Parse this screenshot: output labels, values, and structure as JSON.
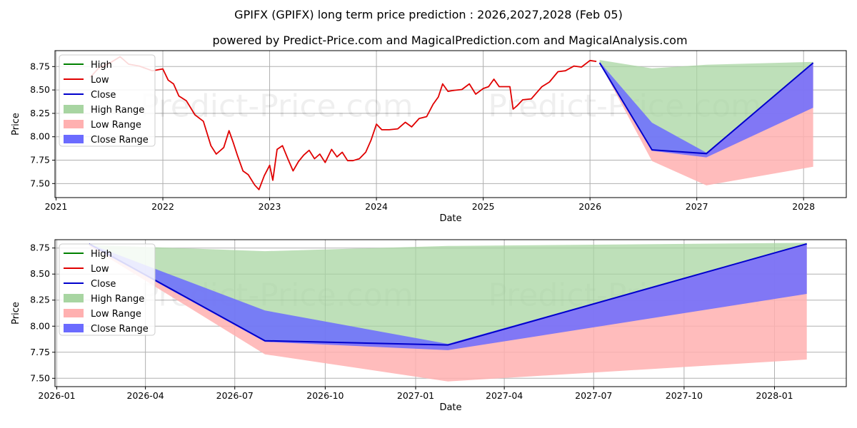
{
  "title_line1": "GPIFX (GPIFX) long term price prediction : 2026,2027,2028 (Feb 05)",
  "title_line2": "powered by Predict-Price.com and MagicalPrediction.com and MagicalAnalysis.com",
  "watermark": "Predict-Price.com",
  "colors": {
    "high": "#008000",
    "low": "#e00000",
    "close": "#0000cc",
    "high_range": "#a8d5a2",
    "low_range": "#ffb0b0",
    "close_range": "#6b6bff",
    "grid": "#b0b0b0"
  },
  "legend": [
    "High",
    "Low",
    "Close",
    "High Range",
    "Low Range",
    "Close Range"
  ],
  "chart_data": [
    {
      "type": "line",
      "panel": "long_term",
      "xlabel": "Date",
      "ylabel": "Price",
      "x_tick_labels": [
        "2021",
        "2022",
        "2023",
        "2024",
        "2025",
        "2026",
        "2027",
        "2028"
      ],
      "x_tick_years": [
        2021,
        2022,
        2023,
        2024,
        2025,
        2026,
        2027,
        2028
      ],
      "xlim": [
        2020.99,
        2028.4
      ],
      "y_tick_labels": [
        "7.50",
        "7.75",
        "8.00",
        "8.25",
        "8.50",
        "8.75"
      ],
      "y_ticks": [
        7.5,
        7.75,
        8.0,
        8.25,
        8.5,
        8.75
      ],
      "ylim": [
        7.35,
        8.92
      ],
      "history": {
        "name": "Low",
        "x": [
          2021.32,
          2021.4,
          2021.5,
          2021.6,
          2021.68,
          2021.78,
          2021.9,
          2022.0,
          2022.05,
          2022.1,
          2022.15,
          2022.22,
          2022.3,
          2022.38,
          2022.45,
          2022.5,
          2022.57,
          2022.62,
          2022.66,
          2022.7,
          2022.75,
          2022.8,
          2022.86,
          2022.9,
          2022.95,
          2023.0,
          2023.03,
          2023.07,
          2023.12,
          2023.17,
          2023.22,
          2023.27,
          2023.32,
          2023.37,
          2023.42,
          2023.47,
          2023.52,
          2023.58,
          2023.63,
          2023.68,
          2023.73,
          2023.78,
          2023.84,
          2023.9,
          2023.95,
          2024.0,
          2024.05,
          2024.12,
          2024.2,
          2024.27,
          2024.33,
          2024.4,
          2024.47,
          2024.53,
          2024.58,
          2024.62,
          2024.67,
          2024.72,
          2024.8,
          2024.87,
          2024.93,
          2025.0,
          2025.05,
          2025.1,
          2025.15,
          2025.2,
          2025.25,
          2025.28,
          2025.32,
          2025.37,
          2025.45,
          2025.55,
          2025.62,
          2025.7,
          2025.77,
          2025.85,
          2025.92,
          2026.0,
          2026.06
        ],
        "values": [
          8.65,
          8.72,
          8.8,
          8.84,
          8.79,
          8.74,
          8.72,
          8.71,
          8.62,
          8.55,
          8.45,
          8.37,
          8.25,
          8.15,
          7.92,
          7.8,
          7.9,
          8.05,
          7.95,
          7.78,
          7.65,
          7.58,
          7.5,
          7.42,
          7.6,
          7.68,
          7.55,
          7.85,
          7.92,
          7.75,
          7.65,
          7.72,
          7.82,
          7.84,
          7.78,
          7.8,
          7.74,
          7.85,
          7.8,
          7.82,
          7.76,
          7.73,
          7.78,
          7.82,
          7.98,
          8.12,
          8.09,
          8.06,
          8.1,
          8.14,
          8.12,
          8.18,
          8.23,
          8.33,
          8.44,
          8.55,
          8.5,
          8.48,
          8.52,
          8.55,
          8.47,
          8.5,
          8.55,
          8.6,
          8.55,
          8.52,
          8.55,
          8.28,
          8.35,
          8.38,
          8.42,
          8.52,
          8.6,
          8.68,
          8.72,
          8.74,
          8.76,
          8.8,
          8.82
        ]
      },
      "forecast": {
        "x": [
          2026.09,
          2026.58,
          2027.09,
          2028.09
        ],
        "high_range_upper": [
          8.82,
          8.73,
          8.77,
          8.8
        ],
        "low_range_lower": [
          8.79,
          7.74,
          7.48,
          7.68
        ],
        "close": [
          8.79,
          7.86,
          7.82,
          8.79
        ],
        "close_range_upper": [
          8.8,
          8.15,
          7.83,
          8.79
        ],
        "close_range_lower": [
          8.79,
          7.85,
          7.78,
          8.31
        ]
      }
    },
    {
      "type": "line",
      "panel": "forecast_zoom",
      "xlabel": "Date",
      "ylabel": "Price",
      "x_tick_labels": [
        "2026-01",
        "2026-04",
        "2026-07",
        "2026-10",
        "2027-01",
        "2027-04",
        "2027-07",
        "2027-10",
        "2028-01"
      ],
      "x_ticks": [
        2026.0,
        2026.247,
        2026.496,
        2026.748,
        2027.0,
        2027.247,
        2027.496,
        2027.748,
        2028.0
      ],
      "xlim": [
        2025.995,
        2028.2
      ],
      "y_tick_labels": [
        "7.50",
        "7.75",
        "8.00",
        "8.25",
        "8.50",
        "8.75"
      ],
      "y_ticks": [
        7.5,
        7.75,
        8.0,
        8.25,
        8.5,
        8.75
      ],
      "ylim": [
        7.42,
        8.83
      ],
      "forecast": {
        "x": [
          2026.09,
          2026.58,
          2027.09,
          2028.09
        ],
        "high_range_upper": [
          8.78,
          8.72,
          8.77,
          8.8
        ],
        "low_range_lower": [
          8.77,
          7.73,
          7.47,
          7.68
        ],
        "close": [
          8.79,
          7.86,
          7.82,
          8.79
        ],
        "close_range_upper": [
          8.79,
          8.15,
          7.83,
          8.79
        ],
        "close_range_lower": [
          8.78,
          7.85,
          7.77,
          8.31
        ]
      }
    }
  ]
}
